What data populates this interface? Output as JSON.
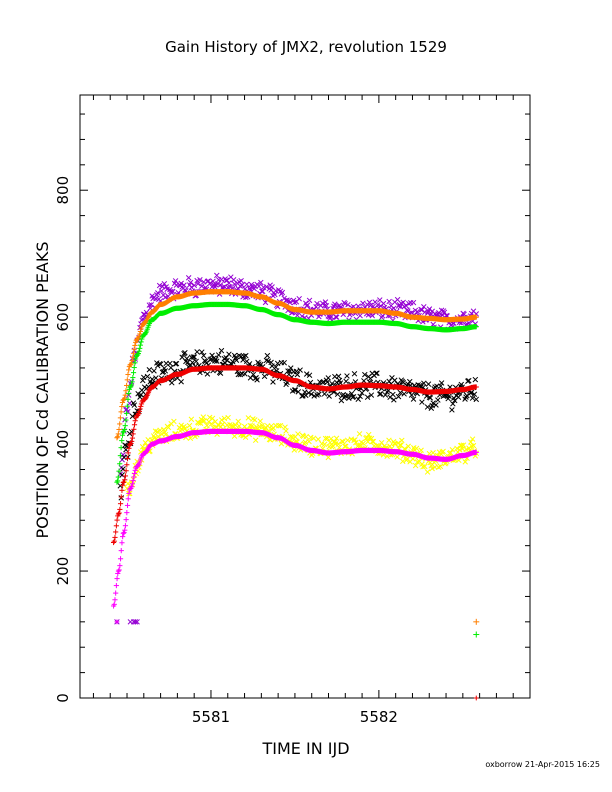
{
  "chart_data": {
    "type": "scatter",
    "title": "Gain History of JMX2, revolution 1529",
    "xlabel": "TIME IN IJD",
    "ylabel": "POSITION OF Cd CALIBRATION PEAKS",
    "xlim": [
      5580.22,
      5582.9
    ],
    "ylim": [
      0,
      950
    ],
    "x_ticks": [
      5581,
      5582
    ],
    "x_tick_labels": [
      "5581",
      "5582"
    ],
    "y_ticks": [
      0,
      200,
      400,
      600,
      800
    ],
    "y_tick_labels": [
      "0",
      "200",
      "400",
      "600",
      "800"
    ],
    "x_start": 5580.44,
    "x_end": 5582.58,
    "series": [
      {
        "color": "#9400d3",
        "marker": "x",
        "smooth": {
          "x": [
            5580.46,
            5580.5,
            5580.55,
            5580.6,
            5580.65,
            5580.7,
            5580.8,
            5580.9,
            5581.0,
            5581.1,
            5581.2,
            5581.3,
            5581.4,
            5581.5,
            5581.6,
            5581.7,
            5581.8,
            5581.9,
            5582.0,
            5582.1,
            5582.2,
            5582.3,
            5582.4,
            5582.5,
            5582.58
          ],
          "y": [
            350,
            455,
            545,
            600,
            625,
            638,
            645,
            648,
            650,
            650,
            645,
            640,
            630,
            620,
            612,
            608,
            610,
            612,
            612,
            610,
            608,
            600,
            595,
            598,
            602
          ]
        },
        "spread": 14
      },
      {
        "color": "#ff7f00",
        "marker": "+",
        "smooth": {
          "x": [
            5580.44,
            5580.48,
            5580.52,
            5580.56,
            5580.6,
            5580.65,
            5580.7,
            5580.8,
            5580.9,
            5581.0,
            5581.1,
            5581.2,
            5581.3,
            5581.4,
            5581.5,
            5581.6,
            5581.7,
            5581.8,
            5581.9,
            5582.0,
            5582.1,
            5582.2,
            5582.3,
            5582.4,
            5582.5,
            5582.58
          ],
          "y": [
            410,
            470,
            525,
            565,
            590,
            608,
            620,
            632,
            638,
            640,
            640,
            638,
            632,
            622,
            612,
            608,
            608,
            610,
            610,
            610,
            606,
            600,
            598,
            596,
            597,
            600
          ]
        },
        "spread": 0,
        "outliers": [
          {
            "x": 5582.58,
            "y": 120
          }
        ]
      },
      {
        "color": "#00ee00",
        "marker": "+",
        "smooth": {
          "x": [
            5580.44,
            5580.48,
            5580.52,
            5580.56,
            5580.6,
            5580.65,
            5580.7,
            5580.8,
            5580.9,
            5581.0,
            5581.1,
            5581.2,
            5581.3,
            5581.4,
            5581.5,
            5581.6,
            5581.7,
            5581.8,
            5581.9,
            5582.0,
            5582.1,
            5582.2,
            5582.3,
            5582.4,
            5582.5,
            5582.58
          ],
          "y": [
            340,
            420,
            490,
            540,
            572,
            596,
            606,
            614,
            618,
            620,
            620,
            618,
            612,
            604,
            596,
            592,
            590,
            592,
            592,
            592,
            590,
            585,
            582,
            580,
            582,
            585
          ]
        },
        "spread": 0,
        "outliers": [
          {
            "x": 5582.58,
            "y": 100
          }
        ]
      },
      {
        "color": "#000000",
        "marker": "x",
        "smooth": {
          "x": [
            5580.46,
            5580.5,
            5580.55,
            5580.6,
            5580.65,
            5580.7,
            5580.8,
            5580.9,
            5581.0,
            5581.1,
            5581.2,
            5581.3,
            5581.4,
            5581.5,
            5581.6,
            5581.7,
            5581.8,
            5581.9,
            5582.0,
            5582.1,
            5582.2,
            5582.3,
            5582.4,
            5582.5,
            5582.58
          ],
          "y": [
            330,
            400,
            460,
            490,
            505,
            512,
            520,
            525,
            530,
            528,
            524,
            520,
            512,
            500,
            490,
            488,
            490,
            492,
            492,
            488,
            482,
            476,
            475,
            482,
            490
          ]
        },
        "spread": 18
      },
      {
        "color": "#ee0000",
        "marker": "+",
        "smooth": {
          "x": [
            5580.42,
            5580.45,
            5580.48,
            5580.52,
            5580.56,
            5580.6,
            5580.65,
            5580.7,
            5580.8,
            5580.9,
            5581.0,
            5581.1,
            5581.2,
            5581.3,
            5581.4,
            5581.5,
            5581.6,
            5581.7,
            5581.8,
            5581.9,
            5582.0,
            5582.1,
            5582.2,
            5582.3,
            5582.4,
            5582.5,
            5582.58
          ],
          "y": [
            245,
            290,
            340,
            400,
            445,
            470,
            490,
            500,
            510,
            518,
            520,
            520,
            520,
            518,
            508,
            500,
            490,
            487,
            490,
            493,
            492,
            490,
            486,
            482,
            483,
            486,
            490
          ]
        },
        "spread": 0
      },
      {
        "color": "#ffff00",
        "marker": "x",
        "smooth": {
          "x": [
            5580.5,
            5580.55,
            5580.6,
            5580.65,
            5580.7,
            5580.8,
            5580.9,
            5581.0,
            5581.1,
            5581.2,
            5581.3,
            5581.4,
            5581.5,
            5581.6,
            5581.7,
            5581.8,
            5581.9,
            5582.0,
            5582.1,
            5582.2,
            5582.3,
            5582.4,
            5582.5,
            5582.58
          ],
          "y": [
            320,
            360,
            390,
            405,
            412,
            420,
            425,
            428,
            428,
            426,
            422,
            415,
            405,
            398,
            396,
            398,
            400,
            398,
            392,
            385,
            370,
            378,
            388,
            392
          ]
        },
        "spread": 14
      },
      {
        "color": "#ff00ff",
        "marker": "+",
        "smooth": {
          "x": [
            5580.42,
            5580.45,
            5580.48,
            5580.52,
            5580.56,
            5580.6,
            5580.65,
            5580.7,
            5580.8,
            5580.9,
            5581.0,
            5581.1,
            5581.2,
            5581.3,
            5581.4,
            5581.5,
            5581.6,
            5581.7,
            5581.8,
            5581.9,
            5582.0,
            5582.1,
            5582.2,
            5582.3,
            5582.4,
            5582.5,
            5582.58
          ],
          "y": [
            145,
            200,
            260,
            330,
            365,
            385,
            400,
            405,
            412,
            418,
            420,
            420,
            420,
            418,
            410,
            398,
            390,
            386,
            388,
            390,
            390,
            388,
            384,
            378,
            376,
            382,
            387
          ]
        },
        "spread": 0
      }
    ],
    "low_markers": [
      {
        "color": "#9400d3",
        "marker": "x",
        "points": [
          {
            "x": 5580.44,
            "y": 120
          },
          {
            "x": 5580.52,
            "y": 120
          },
          {
            "x": 5580.54,
            "y": 120
          },
          {
            "x": 5580.55,
            "y": 120
          },
          {
            "x": 5580.56,
            "y": 120
          }
        ]
      },
      {
        "color": "#ff00ff",
        "marker": "+",
        "points": [
          {
            "x": 5580.44,
            "y": 120
          }
        ]
      },
      {
        "color": "#ee0000",
        "marker": "+",
        "points": [
          {
            "x": 5582.58,
            "y": 0
          }
        ]
      }
    ],
    "footer": "oxborrow 21-Apr-2015 16:25"
  }
}
